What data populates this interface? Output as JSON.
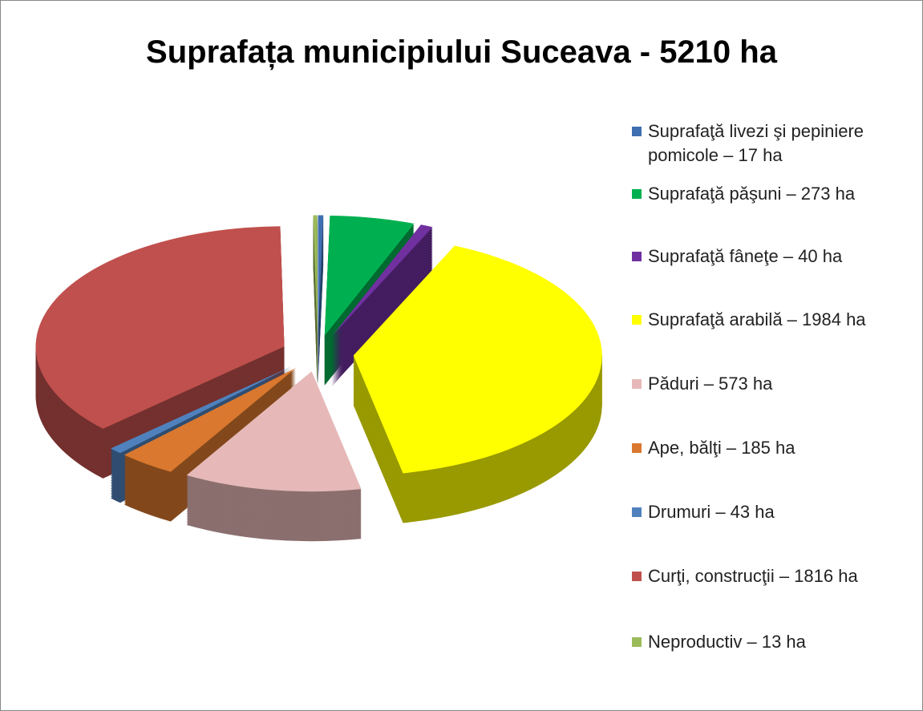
{
  "chart_data": {
    "type": "pie",
    "title": "Suprafața municipiului Suceava - 5210 ha",
    "categories": [
      "Suprafaţă livezi şi pepiniere pomicole – 17 ha",
      "Suprafaţă păşuni – 273 ha",
      "Suprafaţă fâneţe – 40 ha",
      "Suprafaţă arabilă – 1984 ha",
      "Păduri – 573 ha",
      "Ape, bălţi – 185 ha",
      "Drumuri – 43 ha",
      "Curţi, construcţii – 1816 ha",
      "Neproductiv – 13 ha"
    ],
    "values": [
      17,
      273,
      40,
      1984,
      573,
      185,
      43,
      1816,
      13
    ],
    "colors": [
      "#3f6fb0",
      "#00b050",
      "#7030a0",
      "#ffff00",
      "#e6b9b8",
      "#d9782e",
      "#4f81bd",
      "#c0504d",
      "#9bbb59"
    ],
    "legend": "right"
  }
}
